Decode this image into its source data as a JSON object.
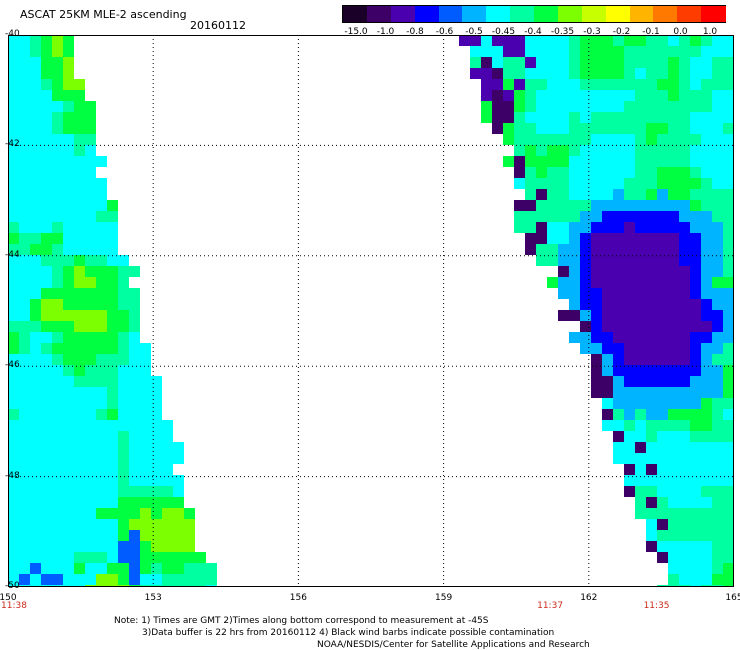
{
  "header": {
    "title": "ASCAT 25KM MLE-2 ascending",
    "date": "20160112"
  },
  "colorbar": {
    "labels": [
      "-15.0",
      "-1.0",
      "-0.8",
      "-0.6",
      "-0.5",
      "-0.45",
      "-0.4",
      "-0.35",
      "-0.3",
      "-0.2",
      "-0.1",
      "0.0",
      "1.0"
    ],
    "colors": [
      "#1a0028",
      "#3d0066",
      "#4b00b0",
      "#0000ff",
      "#005cff",
      "#00b4ff",
      "#00ffff",
      "#00ffa0",
      "#00ff40",
      "#7cff00",
      "#c8ff00",
      "#ffff00",
      "#ffb400",
      "#ff7800",
      "#ff3c00",
      "#ff0000"
    ]
  },
  "axes": {
    "x_ticks": [
      "150",
      "153",
      "156",
      "159",
      "162",
      "165"
    ],
    "y_ticks": [
      "-40",
      "-42",
      "-44",
      "-46",
      "-48",
      "-50"
    ],
    "x_range": [
      150,
      165
    ],
    "y_range": [
      -40,
      -50
    ],
    "grid": "dotted"
  },
  "time_labels": [
    {
      "text": "11:38",
      "lon": 150
    },
    {
      "text": "11:37",
      "lon": 161.2
    },
    {
      "text": "11:35",
      "lon": 163.4
    }
  ],
  "notes": [
    "Note: 1) Times are GMT 2)Times along bottom correspond to measurement at -45S",
    "3)Data buffer is 22 hrs from 20160112 4) Black wind barbs indicate possible contamination",
    "NOAA/NESDIS/Center for Satellite Applications and Research"
  ]
}
